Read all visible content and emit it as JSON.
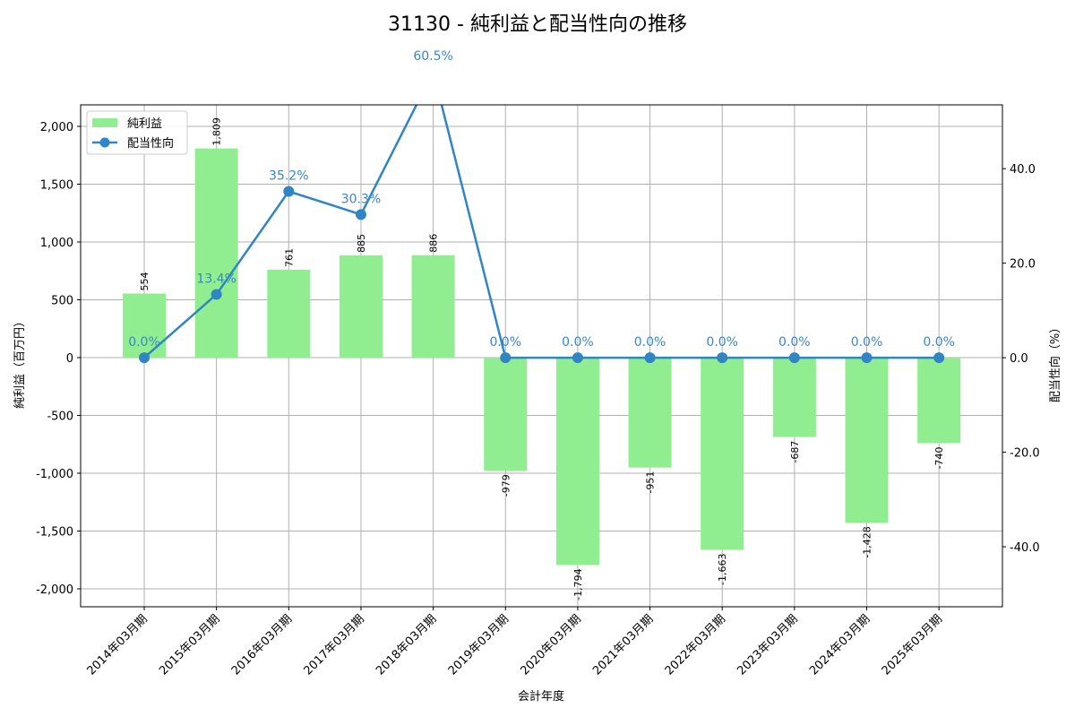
{
  "chart_data": {
    "type": "bar+line",
    "title": "31130 - 純利益と配当性向の推移",
    "xlabel": "会計年度",
    "ylabel_left": "純利益（百万円）",
    "ylabel_right": "配当性向（%）",
    "categories": [
      "2014年03月期",
      "2015年03月期",
      "2016年03月期",
      "2017年03月期",
      "2018年03月期",
      "2019年03月期",
      "2020年03月期",
      "2021年03月期",
      "2022年03月期",
      "2023年03月期",
      "2024年03月期",
      "2025年03月期"
    ],
    "series": [
      {
        "name": "純利益",
        "type": "bar",
        "axis": "left",
        "color": "#90ee90",
        "values": [
          554,
          1809,
          761,
          885,
          886,
          -979,
          -1794,
          -951,
          -1663,
          -687,
          -1428,
          -740
        ],
        "labels": [
          "554",
          "1,809",
          "761",
          "885",
          "886",
          "-979",
          "-1,794",
          "-951",
          "-1,663",
          "-687",
          "-1,428",
          "-740"
        ]
      },
      {
        "name": "配当性向",
        "type": "line",
        "axis": "right",
        "color": "#3185c3",
        "values": [
          0.0,
          13.4,
          35.2,
          30.3,
          60.5,
          0.0,
          0.0,
          0.0,
          0.0,
          0.0,
          0.0,
          0.0
        ],
        "labels": [
          "0.0%",
          "13.4%",
          "35.2%",
          "30.3%",
          "60.5%",
          "0.0%",
          "0.0%",
          "0.0%",
          "0.0%",
          "0.0%",
          "0.0%",
          "0.0%"
        ]
      }
    ],
    "ylim_left": [
      -2155,
      2186
    ],
    "ylim_right": [
      -52.7,
      53.5
    ],
    "yticks_left": [
      2000,
      1500,
      1000,
      500,
      0,
      -500,
      -1000,
      -1500,
      -2000
    ],
    "yticks_left_labels": [
      "2,000",
      "1,500",
      "1,000",
      "500",
      "0",
      "-500",
      "-1,000",
      "-1,500",
      "-2,000"
    ],
    "yticks_right": [
      40,
      20,
      0,
      -20,
      -40
    ],
    "yticks_right_labels": [
      "40.0",
      "20.0",
      "0.0",
      "-20.0",
      "-40.0"
    ],
    "grid": true,
    "legend_position": "upper left"
  },
  "legend": {
    "bar_label": "純利益",
    "line_label": "配当性向"
  }
}
